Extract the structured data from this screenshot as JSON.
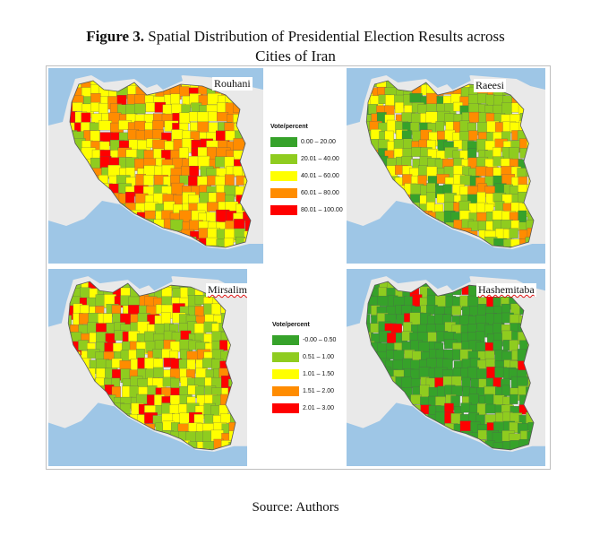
{
  "figure": {
    "label": "Figure 3.",
    "title_line1": "Spatial Distribution of Presidential Election Results across",
    "title_line2": "Cities of Iran"
  },
  "maps": [
    {
      "name": "Rouhani",
      "dominant_colors": [
        "#ffff00",
        "#ff8c00",
        "#8fcc1f",
        "#ff0000"
      ]
    },
    {
      "name": "Raeesi",
      "dominant_colors": [
        "#8fcc1f",
        "#ffff00",
        "#ff8c00",
        "#36a22a"
      ]
    },
    {
      "name": "Mirsalim",
      "dominant_colors": [
        "#8fcc1f",
        "#ffff00",
        "#ff8c00",
        "#ff0000"
      ]
    },
    {
      "name": "Hashemitaba",
      "dominant_colors": [
        "#36a22a",
        "#8fcc1f",
        "#ff0000"
      ]
    }
  ],
  "legends": [
    {
      "title": "Vote/percent",
      "items": [
        {
          "label": "0.00 – 20.00",
          "color": "#36a22a"
        },
        {
          "label": "20.01 – 40.00",
          "color": "#8fcc1f"
        },
        {
          "label": "40.01 – 60.00",
          "color": "#ffff00"
        },
        {
          "label": "60.01 – 80.00",
          "color": "#ff8c00"
        },
        {
          "label": "80.01 – 100.00",
          "color": "#ff0000"
        }
      ]
    },
    {
      "title": "Vote/percent",
      "items": [
        {
          "label": "-0.00 – 0.50",
          "color": "#36a22a"
        },
        {
          "label": "0.51 – 1.00",
          "color": "#8fcc1f"
        },
        {
          "label": "1.01 – 1.50",
          "color": "#ffff00"
        },
        {
          "label": "1.51 – 2.00",
          "color": "#ff8c00"
        },
        {
          "label": "2.01 – 3.00",
          "color": "#ff0000"
        }
      ]
    }
  ],
  "source": "Source: Authors",
  "colors": {
    "sea": "#9ec6e6",
    "land_bg": "#e9e9e9",
    "border": "#555555"
  }
}
